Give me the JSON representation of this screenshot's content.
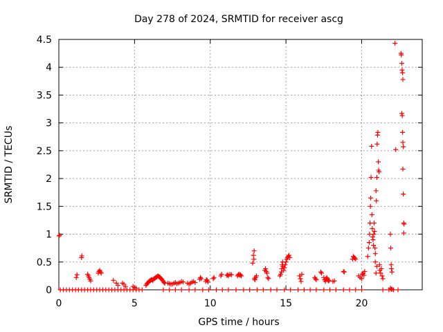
{
  "chart_data": {
    "type": "scatter",
    "title": "Day 278 of 2024, SRMTID for receiver ascg",
    "xlabel": "GPS time / hours",
    "ylabel": "SRMTID / TECUs",
    "xlim": [
      0,
      24
    ],
    "ylim": [
      0,
      4.5
    ],
    "xticks": [
      "0",
      "5",
      "10",
      "15",
      "20"
    ],
    "xtick_values": [
      0,
      5,
      10,
      15,
      20
    ],
    "yticks": [
      "0",
      "0.5",
      "1",
      "1.5",
      "2",
      "2.5",
      "3",
      "3.5",
      "4",
      "4.5"
    ],
    "ytick_values": [
      0,
      0.5,
      1,
      1.5,
      2,
      2.5,
      3,
      3.5,
      4,
      4.5
    ],
    "grid": true,
    "marker": "+",
    "color": "#ff0000",
    "series": [
      {
        "name": "SRMTID",
        "points": [
          [
            0.02,
            0.97
          ],
          [
            0.05,
            0.98
          ],
          [
            0.1,
            0
          ],
          [
            0.3,
            0
          ],
          [
            0.5,
            0
          ],
          [
            0.7,
            0
          ],
          [
            0.9,
            0
          ],
          [
            1.1,
            0
          ],
          [
            1.3,
            0
          ],
          [
            1.5,
            0
          ],
          [
            1.7,
            0
          ],
          [
            1.9,
            0
          ],
          [
            2.1,
            0
          ],
          [
            2.3,
            0
          ],
          [
            2.5,
            0
          ],
          [
            2.7,
            0
          ],
          [
            2.9,
            0
          ],
          [
            3.1,
            0
          ],
          [
            3.3,
            0
          ],
          [
            3.5,
            0
          ],
          [
            3.7,
            0
          ],
          [
            3.9,
            0
          ],
          [
            4.1,
            0
          ],
          [
            4.3,
            0
          ],
          [
            4.5,
            0
          ],
          [
            4.7,
            0
          ],
          [
            4.9,
            0
          ],
          [
            5.1,
            0
          ],
          [
            5.3,
            0
          ],
          [
            5.5,
            0
          ],
          [
            6.9,
            0
          ],
          [
            7.3,
            0
          ],
          [
            7.7,
            0
          ],
          [
            8.1,
            0
          ],
          [
            8.6,
            0
          ],
          [
            9.0,
            0
          ],
          [
            9.5,
            0
          ],
          [
            9.9,
            0
          ],
          [
            10.4,
            0
          ],
          [
            10.8,
            0
          ],
          [
            11.2,
            0
          ],
          [
            11.7,
            0
          ],
          [
            12.2,
            0
          ],
          [
            12.6,
            0
          ],
          [
            13.1,
            0
          ],
          [
            13.5,
            0
          ],
          [
            14.0,
            0
          ],
          [
            14.4,
            0
          ],
          [
            14.9,
            0
          ],
          [
            15.3,
            0
          ],
          [
            15.8,
            0
          ],
          [
            16.2,
            0
          ],
          [
            16.6,
            0
          ],
          [
            17.0,
            0
          ],
          [
            17.5,
            0
          ],
          [
            17.9,
            0
          ],
          [
            18.3,
            0
          ],
          [
            18.8,
            0
          ],
          [
            19.2,
            0
          ],
          [
            19.6,
            0
          ],
          [
            20.0,
            0
          ],
          [
            21.4,
            0
          ],
          [
            21.8,
            0
          ],
          [
            22.1,
            0
          ],
          [
            22.4,
            0
          ],
          [
            1.15,
            0.22
          ],
          [
            1.2,
            0.27
          ],
          [
            1.5,
            0.58
          ],
          [
            1.52,
            0.61
          ],
          [
            1.9,
            0.28
          ],
          [
            1.95,
            0.25
          ],
          [
            2.0,
            0.22
          ],
          [
            2.05,
            0.19
          ],
          [
            2.1,
            0.16
          ],
          [
            2.6,
            0.3
          ],
          [
            2.65,
            0.33
          ],
          [
            2.7,
            0.35
          ],
          [
            2.75,
            0.32
          ],
          [
            2.8,
            0.3
          ],
          [
            3.6,
            0.17
          ],
          [
            3.8,
            0.12
          ],
          [
            3.9,
            0.08
          ],
          [
            4.2,
            0.12
          ],
          [
            4.3,
            0.1
          ],
          [
            4.4,
            0.06
          ],
          [
            4.9,
            0.06
          ],
          [
            5.0,
            0.04
          ],
          [
            5.1,
            0.03
          ],
          [
            5.75,
            0.08
          ],
          [
            5.8,
            0.1
          ],
          [
            5.85,
            0.12
          ],
          [
            5.9,
            0.13
          ],
          [
            5.95,
            0.15
          ],
          [
            6.0,
            0.16
          ],
          [
            6.05,
            0.17
          ],
          [
            6.1,
            0.18
          ],
          [
            6.15,
            0.18
          ],
          [
            6.2,
            0.17
          ],
          [
            6.25,
            0.19
          ],
          [
            6.3,
            0.2
          ],
          [
            6.35,
            0.21
          ],
          [
            6.4,
            0.22
          ],
          [
            6.45,
            0.23
          ],
          [
            6.5,
            0.24
          ],
          [
            6.55,
            0.25
          ],
          [
            6.6,
            0.24
          ],
          [
            6.65,
            0.23
          ],
          [
            6.7,
            0.22
          ],
          [
            6.75,
            0.2
          ],
          [
            6.8,
            0.19
          ],
          [
            6.85,
            0.17
          ],
          [
            6.9,
            0.15
          ],
          [
            6.95,
            0.13
          ],
          [
            7.0,
            0.12
          ],
          [
            7.2,
            0.12
          ],
          [
            7.3,
            0.11
          ],
          [
            7.4,
            0.1
          ],
          [
            7.5,
            0.1
          ],
          [
            7.6,
            0.12
          ],
          [
            7.7,
            0.13
          ],
          [
            7.8,
            0.11
          ],
          [
            7.9,
            0.12
          ],
          [
            8.0,
            0.13
          ],
          [
            8.1,
            0.15
          ],
          [
            8.2,
            0.14
          ],
          [
            8.5,
            0.12
          ],
          [
            8.6,
            0.1
          ],
          [
            8.7,
            0.12
          ],
          [
            8.8,
            0.14
          ],
          [
            8.9,
            0.15
          ],
          [
            9.0,
            0.13
          ],
          [
            9.3,
            0.19
          ],
          [
            9.35,
            0.22
          ],
          [
            9.4,
            0.2
          ],
          [
            9.7,
            0.15
          ],
          [
            9.75,
            0.18
          ],
          [
            9.8,
            0.17
          ],
          [
            9.85,
            0.14
          ],
          [
            10.2,
            0.2
          ],
          [
            10.25,
            0.22
          ],
          [
            10.7,
            0.25
          ],
          [
            10.75,
            0.28
          ],
          [
            11.1,
            0.26
          ],
          [
            11.15,
            0.27
          ],
          [
            11.2,
            0.25
          ],
          [
            11.3,
            0.28
          ],
          [
            11.4,
            0.27
          ],
          [
            11.8,
            0.25
          ],
          [
            11.85,
            0.27
          ],
          [
            11.9,
            0.28
          ],
          [
            11.95,
            0.26
          ],
          [
            12.0,
            0.27
          ],
          [
            12.05,
            0.25
          ],
          [
            12.8,
            0.48
          ],
          [
            12.85,
            0.62
          ],
          [
            12.9,
            0.7
          ],
          [
            12.88,
            0.55
          ],
          [
            12.92,
            0.2
          ],
          [
            12.95,
            0.18
          ],
          [
            13.0,
            0.22
          ],
          [
            13.05,
            0.25
          ],
          [
            13.6,
            0.35
          ],
          [
            13.65,
            0.38
          ],
          [
            13.7,
            0.33
          ],
          [
            13.75,
            0.3
          ],
          [
            13.8,
            0.22
          ],
          [
            13.85,
            0.2
          ],
          [
            14.6,
            0.25
          ],
          [
            14.65,
            0.28
          ],
          [
            14.7,
            0.32
          ],
          [
            14.72,
            0.38
          ],
          [
            14.75,
            0.45
          ],
          [
            14.78,
            0.5
          ],
          [
            14.8,
            0.42
          ],
          [
            14.85,
            0.35
          ],
          [
            14.9,
            0.4
          ],
          [
            14.95,
            0.45
          ],
          [
            15.0,
            0.5
          ],
          [
            15.05,
            0.55
          ],
          [
            15.1,
            0.58
          ],
          [
            15.15,
            0.6
          ],
          [
            15.2,
            0.62
          ],
          [
            15.25,
            0.58
          ],
          [
            15.9,
            0.25
          ],
          [
            15.95,
            0.2
          ],
          [
            16.0,
            0.15
          ],
          [
            16.05,
            0.28
          ],
          [
            16.9,
            0.22
          ],
          [
            16.95,
            0.2
          ],
          [
            17.0,
            0.18
          ],
          [
            17.3,
            0.32
          ],
          [
            17.35,
            0.3
          ],
          [
            17.5,
            0.22
          ],
          [
            17.55,
            0.18
          ],
          [
            17.6,
            0.15
          ],
          [
            17.65,
            0.2
          ],
          [
            17.7,
            0.22
          ],
          [
            17.75,
            0.19
          ],
          [
            17.8,
            0.16
          ],
          [
            17.85,
            0.17
          ],
          [
            18.1,
            0.15
          ],
          [
            18.2,
            0.16
          ],
          [
            18.8,
            0.33
          ],
          [
            18.85,
            0.32
          ],
          [
            19.4,
            0.55
          ],
          [
            19.45,
            0.6
          ],
          [
            19.5,
            0.58
          ],
          [
            19.55,
            0.57
          ],
          [
            19.6,
            0.55
          ],
          [
            19.8,
            0.25
          ],
          [
            19.9,
            0.22
          ],
          [
            20.0,
            0.2
          ],
          [
            20.05,
            0.28
          ],
          [
            20.1,
            0.3
          ],
          [
            20.15,
            0.26
          ],
          [
            20.2,
            0.33
          ],
          [
            20.4,
            0.6
          ],
          [
            20.45,
            0.75
          ],
          [
            20.5,
            0.85
          ],
          [
            20.52,
            1.0
          ],
          [
            20.55,
            1.2
          ],
          [
            20.58,
            1.5
          ],
          [
            20.6,
            1.65
          ],
          [
            20.62,
            2.02
          ],
          [
            20.65,
            2.58
          ],
          [
            20.68,
            1.35
          ],
          [
            20.7,
            1.1
          ],
          [
            20.72,
            0.95
          ],
          [
            20.75,
            0.9
          ],
          [
            20.78,
            0.8
          ],
          [
            20.8,
            1.0
          ],
          [
            20.82,
            1.2
          ],
          [
            20.85,
            1.05
          ],
          [
            20.88,
            0.75
          ],
          [
            20.9,
            0.65
          ],
          [
            20.95,
            1.78
          ],
          [
            20.97,
            1.6
          ],
          [
            21.0,
            2.02
          ],
          [
            21.02,
            2.62
          ],
          [
            21.05,
            2.78
          ],
          [
            21.07,
            2.83
          ],
          [
            21.1,
            2.3
          ],
          [
            21.12,
            2.15
          ],
          [
            21.15,
            2.12
          ],
          [
            21.18,
            0.45
          ],
          [
            21.2,
            0.35
          ],
          [
            21.25,
            0.3
          ],
          [
            21.3,
            0.38
          ],
          [
            21.35,
            0.25
          ],
          [
            21.4,
            0.2
          ],
          [
            20.9,
            0.5
          ],
          [
            20.95,
            0.3
          ],
          [
            21.0,
            0.42
          ],
          [
            21.9,
            0.03
          ],
          [
            21.95,
            0.01
          ],
          [
            22.0,
            0.01
          ],
          [
            21.9,
            1.0
          ],
          [
            21.92,
            0.75
          ],
          [
            21.95,
            0.45
          ],
          [
            21.97,
            0.38
          ],
          [
            22.0,
            0.32
          ],
          [
            22.2,
            4.43
          ],
          [
            22.25,
            2.52
          ],
          [
            22.6,
            4.25
          ],
          [
            22.62,
            4.22
          ],
          [
            22.65,
            4.07
          ],
          [
            22.67,
            3.95
          ],
          [
            22.7,
            3.9
          ],
          [
            22.72,
            3.78
          ],
          [
            22.65,
            3.17
          ],
          [
            22.68,
            3.13
          ],
          [
            22.7,
            2.83
          ],
          [
            22.72,
            2.65
          ],
          [
            22.75,
            2.57
          ],
          [
            22.72,
            2.17
          ],
          [
            22.75,
            1.72
          ],
          [
            22.78,
            1.2
          ],
          [
            22.8,
            1.18
          ],
          [
            22.78,
            1.02
          ]
        ]
      }
    ]
  }
}
